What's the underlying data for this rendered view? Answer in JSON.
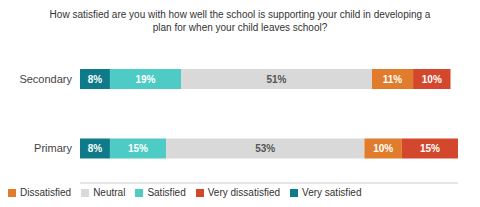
{
  "chart_data": {
    "type": "bar",
    "title": "How satisfied are you with how well the school is supporting your child in developing a plan for when your child leaves school?",
    "orientation": "horizontal",
    "stacked": true,
    "data_labels": true,
    "tick_labels": "y",
    "legend": "bottom",
    "categories": [
      "Secondary",
      "Primary"
    ],
    "xlim": [
      0,
      101
    ],
    "series": [
      {
        "name": "Very satisfied",
        "color": "#0f7b8a",
        "values": [
          8,
          8
        ],
        "value_labels": [
          "8%",
          "8%"
        ]
      },
      {
        "name": "Satisfied",
        "color": "#4ecbc5",
        "values": [
          19,
          15
        ],
        "value_labels": [
          "19%",
          "15%"
        ]
      },
      {
        "name": "Neutral",
        "color": "#d9d9d9",
        "values": [
          51,
          53
        ],
        "value_labels": [
          "51%",
          "53%"
        ]
      },
      {
        "name": "Dissatisfied",
        "color": "#e07c2c",
        "values": [
          11,
          10
        ],
        "value_labels": [
          "11%",
          "10%"
        ]
      },
      {
        "name": "Very dissatisfied",
        "color": "#d3472c",
        "values": [
          10,
          15
        ],
        "value_labels": [
          "10%",
          "15%"
        ]
      }
    ]
  }
}
